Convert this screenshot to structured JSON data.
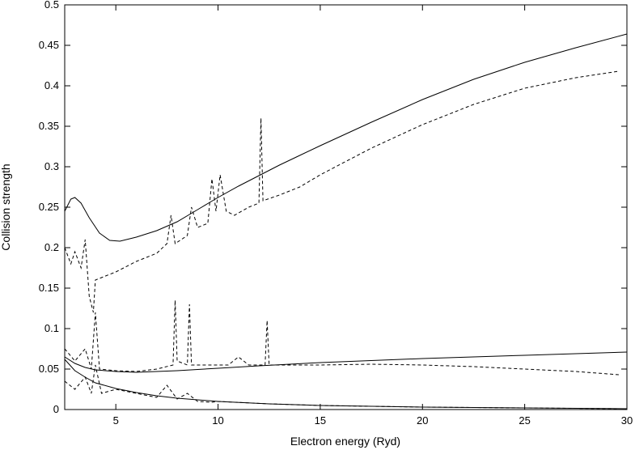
{
  "chart_data": {
    "type": "line",
    "title": "",
    "xlabel": "Electron energy (Ryd)",
    "ylabel": "Collision strength",
    "xlim": [
      2.5,
      30
    ],
    "ylim": [
      0,
      0.5
    ],
    "x_ticks": [
      5,
      10,
      15,
      20,
      25,
      30
    ],
    "y_ticks": [
      0,
      0.05,
      0.1,
      0.15,
      0.2,
      0.25,
      0.3,
      0.35,
      0.4,
      0.45,
      0.5
    ],
    "grid": false,
    "legend": "none",
    "series": [
      {
        "style": "solid",
        "color": "#000000",
        "points": [
          [
            2.5,
            0.245
          ],
          [
            2.8,
            0.26
          ],
          [
            3.0,
            0.262
          ],
          [
            3.3,
            0.255
          ],
          [
            3.7,
            0.237
          ],
          [
            4.2,
            0.218
          ],
          [
            4.7,
            0.209
          ],
          [
            5.2,
            0.208
          ],
          [
            6.0,
            0.213
          ],
          [
            7.0,
            0.221
          ],
          [
            8.0,
            0.232
          ],
          [
            9.0,
            0.247
          ],
          [
            10.0,
            0.262
          ],
          [
            11.0,
            0.276
          ],
          [
            12.0,
            0.289
          ],
          [
            13.0,
            0.302
          ],
          [
            14.0,
            0.314
          ],
          [
            15.0,
            0.326
          ],
          [
            17.5,
            0.355
          ],
          [
            20.0,
            0.383
          ],
          [
            22.5,
            0.408
          ],
          [
            25.0,
            0.429
          ],
          [
            27.5,
            0.447
          ],
          [
            30.0,
            0.464
          ]
        ]
      },
      {
        "style": "dashed",
        "color": "#000000",
        "points": [
          [
            2.5,
            0.2
          ],
          [
            2.8,
            0.18
          ],
          [
            3.0,
            0.195
          ],
          [
            3.3,
            0.175
          ],
          [
            3.5,
            0.21
          ],
          [
            3.7,
            0.14
          ],
          [
            3.9,
            0.12
          ],
          [
            4.0,
            0.16
          ],
          [
            4.5,
            0.165
          ],
          [
            5.0,
            0.17
          ],
          [
            6.0,
            0.183
          ],
          [
            7.0,
            0.193
          ],
          [
            7.5,
            0.205
          ],
          [
            7.7,
            0.24
          ],
          [
            7.9,
            0.205
          ],
          [
            8.5,
            0.215
          ],
          [
            8.7,
            0.25
          ],
          [
            9.0,
            0.225
          ],
          [
            9.5,
            0.23
          ],
          [
            9.7,
            0.285
          ],
          [
            9.9,
            0.245
          ],
          [
            10.1,
            0.29
          ],
          [
            10.4,
            0.245
          ],
          [
            10.8,
            0.24
          ],
          [
            11.5,
            0.25
          ],
          [
            12.0,
            0.255
          ],
          [
            12.1,
            0.36
          ],
          [
            12.2,
            0.258
          ],
          [
            13.0,
            0.265
          ],
          [
            14.0,
            0.275
          ],
          [
            15.0,
            0.29
          ],
          [
            17.5,
            0.323
          ],
          [
            20.0,
            0.352
          ],
          [
            22.5,
            0.377
          ],
          [
            25.0,
            0.397
          ],
          [
            27.5,
            0.41
          ],
          [
            29.6,
            0.418
          ]
        ]
      },
      {
        "style": "solid",
        "color": "#000000",
        "points": [
          [
            2.5,
            0.065
          ],
          [
            3.0,
            0.057
          ],
          [
            3.5,
            0.052
          ],
          [
            4.0,
            0.049
          ],
          [
            5.0,
            0.047
          ],
          [
            6.0,
            0.046
          ],
          [
            7.0,
            0.047
          ],
          [
            8.0,
            0.048
          ],
          [
            10.0,
            0.051
          ],
          [
            12.0,
            0.054
          ],
          [
            15.0,
            0.058
          ],
          [
            20.0,
            0.063
          ],
          [
            25.0,
            0.067
          ],
          [
            30.0,
            0.071
          ]
        ]
      },
      {
        "style": "dashed",
        "color": "#000000",
        "points": [
          [
            2.5,
            0.075
          ],
          [
            3.0,
            0.06
          ],
          [
            3.5,
            0.075
          ],
          [
            3.8,
            0.05
          ],
          [
            4.0,
            0.12
          ],
          [
            4.2,
            0.05
          ],
          [
            5.0,
            0.048
          ],
          [
            6.0,
            0.047
          ],
          [
            7.0,
            0.05
          ],
          [
            7.8,
            0.055
          ],
          [
            7.9,
            0.135
          ],
          [
            8.0,
            0.06
          ],
          [
            8.5,
            0.055
          ],
          [
            8.6,
            0.13
          ],
          [
            8.7,
            0.055
          ],
          [
            9.5,
            0.055
          ],
          [
            10.5,
            0.055
          ],
          [
            11.0,
            0.065
          ],
          [
            11.5,
            0.055
          ],
          [
            12.3,
            0.055
          ],
          [
            12.4,
            0.11
          ],
          [
            12.5,
            0.055
          ],
          [
            15.0,
            0.055
          ],
          [
            17.5,
            0.056
          ],
          [
            20.0,
            0.055
          ],
          [
            22.5,
            0.053
          ],
          [
            25.0,
            0.05
          ],
          [
            27.5,
            0.047
          ],
          [
            29.6,
            0.043
          ]
        ]
      },
      {
        "style": "solid",
        "color": "#000000",
        "points": [
          [
            2.5,
            0.062
          ],
          [
            3.0,
            0.048
          ],
          [
            3.5,
            0.04
          ],
          [
            4.0,
            0.033
          ],
          [
            5.0,
            0.026
          ],
          [
            6.0,
            0.021
          ],
          [
            7.0,
            0.017
          ],
          [
            8.0,
            0.014
          ],
          [
            9.0,
            0.012
          ],
          [
            10.0,
            0.01
          ],
          [
            12.5,
            0.007
          ],
          [
            15.0,
            0.005
          ],
          [
            20.0,
            0.003
          ],
          [
            25.0,
            0.002
          ],
          [
            30.0,
            0.001
          ]
        ]
      },
      {
        "style": "dashed",
        "color": "#000000",
        "points": [
          [
            2.5,
            0.035
          ],
          [
            3.0,
            0.025
          ],
          [
            3.5,
            0.04
          ],
          [
            3.8,
            0.02
          ],
          [
            4.0,
            0.055
          ],
          [
            4.3,
            0.02
          ],
          [
            5.0,
            0.025
          ],
          [
            6.0,
            0.02
          ],
          [
            7.0,
            0.015
          ],
          [
            7.5,
            0.03
          ],
          [
            8.0,
            0.013
          ],
          [
            8.5,
            0.02
          ],
          [
            9.0,
            0.01
          ],
          [
            9.7,
            0.009
          ],
          [
            10.0,
            0.01
          ],
          [
            12.5,
            0.007
          ],
          [
            15.0,
            0.005
          ],
          [
            20.0,
            0.003
          ],
          [
            25.0,
            0.002
          ],
          [
            29.6,
            0.001
          ]
        ]
      }
    ]
  }
}
